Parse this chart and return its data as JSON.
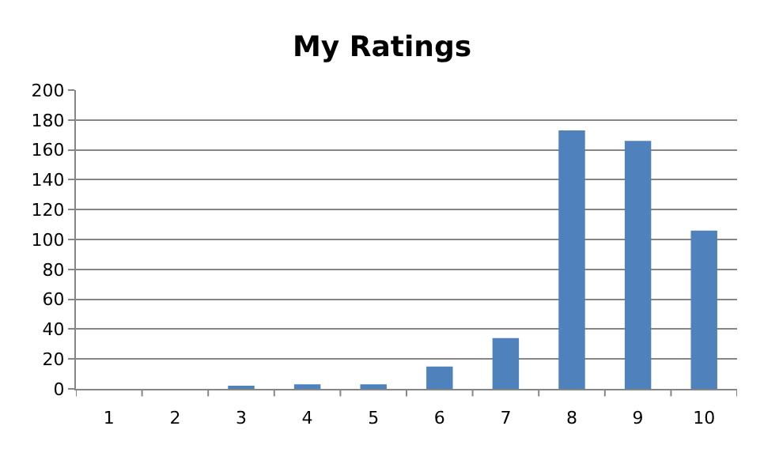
{
  "chart_data": {
    "type": "bar",
    "title": "My Ratings",
    "categories": [
      "1",
      "2",
      "3",
      "4",
      "5",
      "6",
      "7",
      "8",
      "9",
      "10"
    ],
    "values": [
      0,
      0,
      2,
      3,
      3,
      15,
      34,
      173,
      166,
      106
    ],
    "color": "#4f81bd",
    "ylim": [
      0,
      200
    ],
    "yticks": [
      0,
      20,
      40,
      60,
      80,
      100,
      120,
      140,
      160,
      180,
      200
    ],
    "grid": "y",
    "legend": false
  }
}
